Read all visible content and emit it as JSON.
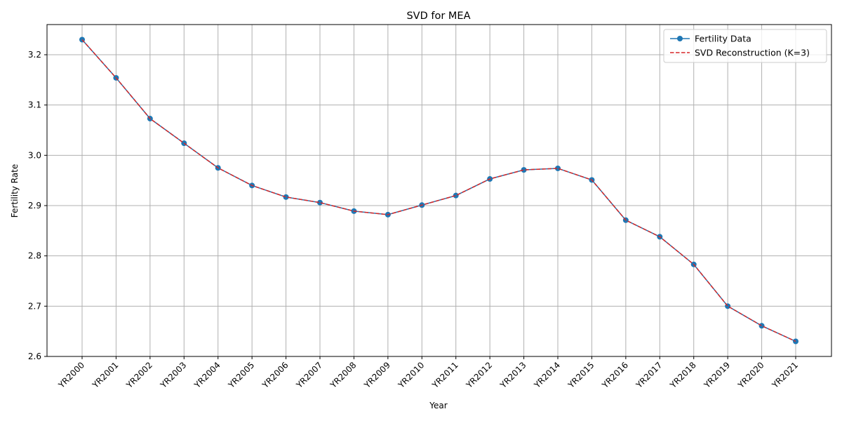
{
  "chart_data": {
    "type": "line",
    "title": "SVD for MEA",
    "xlabel": "Year",
    "ylabel": "Fertility Rate",
    "categories": [
      "YR2000",
      "YR2001",
      "YR2002",
      "YR2003",
      "YR2004",
      "YR2005",
      "YR2006",
      "YR2007",
      "YR2008",
      "YR2009",
      "YR2010",
      "YR2011",
      "YR2012",
      "YR2013",
      "YR2014",
      "YR2015",
      "YR2016",
      "YR2017",
      "YR2018",
      "YR2019",
      "YR2020",
      "YR2021"
    ],
    "ylim": [
      2.6,
      3.26
    ],
    "yticks": [
      2.6,
      2.7,
      2.8,
      2.9,
      3.0,
      3.1,
      3.2
    ],
    "ytick_labels": [
      "2.6",
      "2.7",
      "2.8",
      "2.9",
      "3.0",
      "3.1",
      "3.2"
    ],
    "grid": true,
    "legend_position": "top-right",
    "series": [
      {
        "name": "Fertility Data",
        "style": "solid line with circle markers",
        "color": "#1f77b4",
        "values": [
          3.23,
          3.154,
          3.073,
          3.024,
          2.975,
          2.94,
          2.917,
          2.906,
          2.889,
          2.882,
          2.901,
          2.92,
          2.953,
          2.971,
          2.974,
          2.951,
          2.871,
          2.838,
          2.783,
          2.7,
          2.661,
          2.63
        ]
      },
      {
        "name": "SVD Reconstruction (K=3)",
        "style": "dashed line",
        "color": "#d62728",
        "values": [
          3.23,
          3.154,
          3.073,
          3.024,
          2.975,
          2.94,
          2.917,
          2.906,
          2.889,
          2.882,
          2.901,
          2.92,
          2.953,
          2.971,
          2.974,
          2.951,
          2.871,
          2.838,
          2.783,
          2.7,
          2.661,
          2.63
        ]
      }
    ]
  }
}
